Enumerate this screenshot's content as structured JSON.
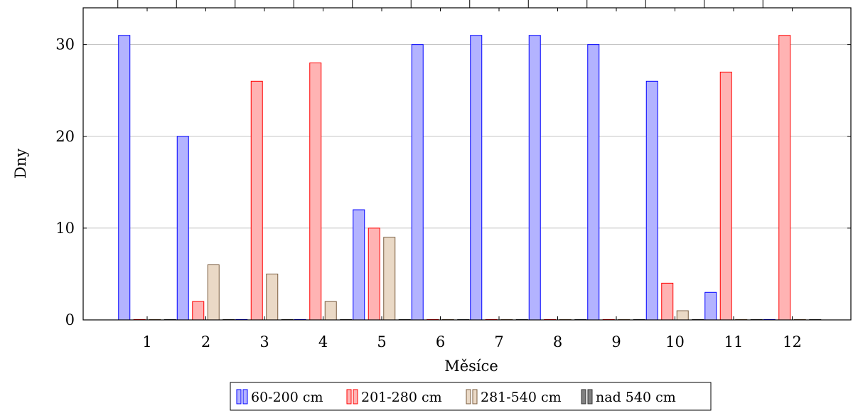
{
  "chart_data": {
    "type": "bar",
    "title": "",
    "xlabel": "Měsíce",
    "ylabel": "Dny",
    "categories": [
      "1",
      "2",
      "3",
      "4",
      "5",
      "6",
      "7",
      "8",
      "9",
      "10",
      "11",
      "12"
    ],
    "ylim": [
      0,
      34
    ],
    "yticks": [
      0,
      10,
      20,
      30
    ],
    "grid": "horizontal",
    "legend_position": "bottom",
    "series": [
      {
        "name": "60-200 cm",
        "fill": "#b3b3ff",
        "stroke": "#0000ff",
        "values": [
          31,
          20,
          0,
          0,
          12,
          30,
          31,
          31,
          30,
          26,
          3,
          0
        ]
      },
      {
        "name": "201-280 cm",
        "fill": "#ffb3b3",
        "stroke": "#ff0000",
        "values": [
          0,
          2,
          26,
          28,
          10,
          0,
          0,
          0,
          0,
          4,
          27,
          31
        ]
      },
      {
        "name": "281-540 cm",
        "fill": "#ead9c6",
        "stroke": "#7a5c3e",
        "values": [
          0,
          6,
          5,
          2,
          9,
          0,
          0,
          0,
          0,
          1,
          0,
          0
        ]
      },
      {
        "name": "nad 540 cm",
        "fill": "#808080",
        "stroke": "#333333",
        "values": [
          0,
          0,
          0,
          0,
          0,
          0,
          0,
          0,
          0,
          0,
          0,
          0
        ]
      }
    ]
  }
}
